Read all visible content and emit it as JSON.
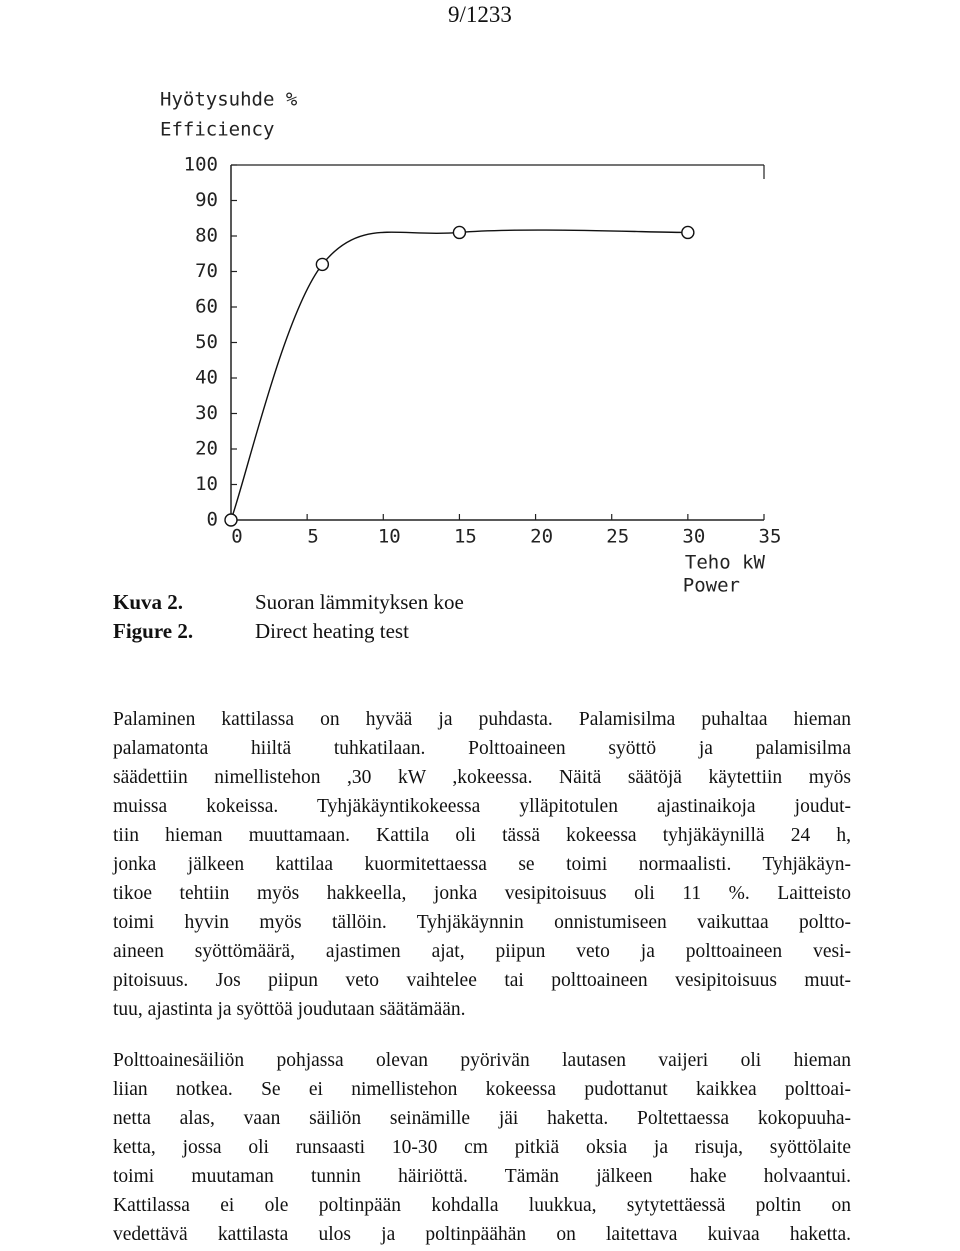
{
  "page_number": "9/1233",
  "chart_data": {
    "type": "line",
    "ylabel": "Hyötysuhde %",
    "ylabel_en": "Efficiency",
    "xlabel": "Teho kW",
    "xlabel_en": "Power",
    "x": [
      0,
      6,
      15,
      30
    ],
    "series": [
      {
        "color": "#111111",
        "values": [
          0,
          72,
          81,
          81
        ]
      }
    ],
    "xlim": [
      0,
      35
    ],
    "ylim": [
      0,
      100
    ],
    "xticks": [
      0,
      5,
      10,
      15,
      20,
      25,
      30,
      35
    ],
    "yticks": [
      0,
      10,
      20,
      30,
      40,
      50,
      60,
      70,
      80,
      90,
      100
    ]
  },
  "caption": {
    "label_fi": "Kuva 2.",
    "title_fi": "Suoran lämmityksen koe",
    "label_en": "Figure 2.",
    "title_en": "Direct heating test"
  },
  "paragraphs": [
    [
      "Palaminen kattilassa on hyvää ja puhdasta. Palamisilma puhaltaa hieman",
      "palamatonta hiiltä tuhkatilaan. Polttoaineen syöttö ja palamisilma",
      "säädettiin nimellistehon ,30 kW ,kokeessa. Näitä säätöjä käytettiin myös",
      "muissa kokeissa. Tyhjäkäyntikokeessa ylläpitotulen ajastinaikoja joudut-",
      "tiin hieman muuttamaan. Kattila oli tässä kokeessa tyhjäkäynillä 24 h,",
      "jonka jälkeen kattilaa kuormitettaessa se toimi normaalisti. Tyhjäkäyn-",
      "tikoe tehtiin myös hakkeella, jonka vesipitoisuus oli 11 %. Laitteisto",
      "toimi hyvin myös tällöin. Tyhjäkäynnin onnistumiseen vaikuttaa poltto-",
      "aineen syöttömäärä, ajastimen ajat, piipun veto ja polttoaineen vesi-",
      "pitoisuus. Jos piipun veto vaihtelee tai polttoaineen vesipitoisuus muut-",
      "tuu, ajastinta ja syöttöä joudutaan säätämään."
    ],
    [
      "Polttoainesäiliön pohjassa olevan pyörivän lautasen vaijeri oli hieman",
      "liian notkea. Se ei nimellistehon kokeessa pudottanut kaikkea polttoai-",
      "netta alas, vaan säiliön seinämille jäi haketta. Poltettaessa kokopuuha-",
      "ketta, jossa oli runsaasti 10-30 cm pitkiä oksia ja risuja, syöttölaite",
      "toimi muutaman tunnin häiriöttä. Tämän jälkeen hake holvaantui.",
      "Kattilassa ei ole poltinpään kohdalla luukkua, sytytettäessä poltin on",
      "vedettävä kattilasta ulos ja poltinpäähän on laitettava kuivaa haketta."
    ]
  ]
}
